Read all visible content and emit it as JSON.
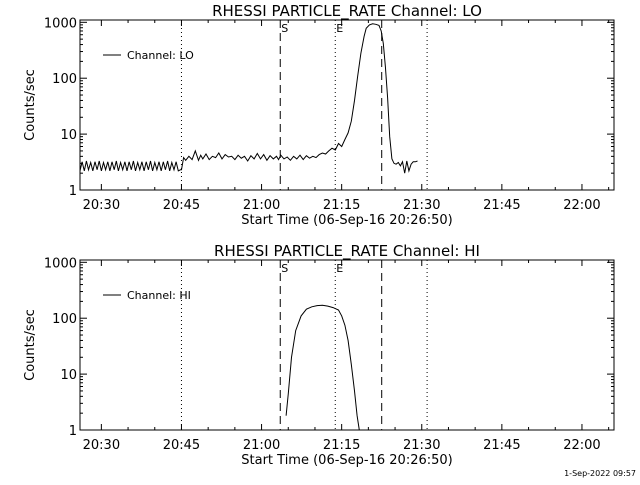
{
  "footer": {
    "date": "1-Sep-2022 09:57"
  },
  "chart_data": [
    {
      "type": "line",
      "title": "RHESSI PARTICLE_RATE Channel: LO",
      "xlabel": "Start Time (06-Sep-16 20:26:50)",
      "ylabel": "Counts/sec",
      "yscale": "log",
      "ylim": [
        1,
        1100
      ],
      "xlim_min": [
        -4,
        96
      ],
      "xticks_min": [
        0,
        15,
        30,
        45,
        60,
        75,
        90
      ],
      "xtick_labels": [
        "20:30",
        "20:45",
        "21:00",
        "21:15",
        "21:30",
        "21:45",
        "22:00"
      ],
      "yticks": [
        1,
        10,
        100,
        1000
      ],
      "ytick_labels": [
        "1",
        "10",
        "100",
        "1000"
      ],
      "legend": {
        "label": "Channel: LO",
        "position": "top-left"
      },
      "markers": [
        {
          "label": "S",
          "x_min": 33.5,
          "style": "dashed"
        },
        {
          "label": "E",
          "x_min": 43.8,
          "style": "dotted"
        }
      ],
      "vlines": [
        {
          "x_min": 15.0,
          "style": "dotted"
        },
        {
          "x_min": 52.5,
          "style": "dashed"
        },
        {
          "x_min": 61.0,
          "style": "dotted"
        }
      ],
      "series": [
        {
          "name": "Channel: LO",
          "x_min": [
            -4.0,
            -3.6,
            -3.2,
            -2.8,
            -2.4,
            -2.0,
            -1.6,
            -1.2,
            -0.8,
            -0.4,
            0.0,
            0.4,
            0.8,
            1.2,
            1.6,
            2.0,
            2.4,
            2.8,
            3.2,
            3.6,
            4.0,
            4.4,
            4.8,
            5.2,
            5.6,
            6.0,
            6.4,
            6.8,
            7.2,
            7.6,
            8.0,
            8.4,
            8.8,
            9.2,
            9.6,
            10.0,
            10.4,
            10.8,
            11.2,
            11.6,
            12.0,
            12.4,
            12.8,
            13.2,
            13.6,
            14.0,
            14.4,
            14.8,
            15.0,
            15.4,
            15.8,
            16.4,
            17.0,
            17.6,
            18.2,
            18.6,
            19.0,
            19.6,
            20.2,
            20.8,
            21.4,
            22.0,
            22.6,
            23.2,
            23.8,
            24.4,
            25.0,
            25.6,
            26.2,
            26.8,
            27.4,
            28.0,
            28.6,
            29.2,
            29.8,
            30.4,
            31.0,
            31.6,
            32.2,
            32.8,
            33.2,
            33.6,
            34.2,
            34.8,
            35.4,
            36.0,
            36.6,
            37.2,
            37.8,
            38.4,
            39.0,
            39.6,
            40.2,
            40.8,
            41.4,
            42.0,
            42.6,
            43.2,
            43.8,
            44.4,
            45.0,
            45.6,
            46.2,
            46.8,
            47.4,
            48.0,
            48.6,
            49.2,
            49.6,
            50.2,
            50.8,
            51.4,
            52.0,
            52.4,
            52.8,
            53.2,
            53.6,
            54.0,
            54.4,
            54.8,
            55.2,
            55.6,
            56.0,
            56.4,
            56.8,
            57.2,
            57.6,
            58.0,
            58.4,
            58.8,
            59.2
          ],
          "y": [
            2.2,
            3.2,
            2.2,
            3.3,
            2.3,
            3.1,
            2.2,
            3.2,
            2.3,
            3.3,
            2.2,
            3.1,
            2.3,
            3.2,
            2.2,
            3.2,
            2.3,
            3.3,
            2.2,
            3.1,
            2.3,
            3.2,
            2.2,
            3.2,
            2.3,
            3.3,
            2.2,
            3.1,
            2.3,
            3.2,
            2.2,
            3.2,
            2.3,
            3.3,
            2.2,
            3.1,
            2.3,
            3.2,
            2.2,
            3.2,
            2.3,
            3.3,
            2.2,
            3.1,
            2.3,
            3.2,
            2.2,
            2.3,
            2.3,
            3.8,
            3.4,
            4.0,
            3.5,
            5.0,
            3.4,
            4.2,
            3.6,
            4.4,
            3.5,
            4.0,
            3.8,
            4.6,
            3.6,
            4.3,
            3.9,
            4.0,
            3.5,
            4.2,
            3.7,
            4.0,
            3.3,
            4.1,
            3.6,
            4.5,
            3.6,
            4.3,
            3.4,
            4.1,
            3.6,
            4.0,
            3.5,
            4.2,
            3.6,
            3.9,
            3.4,
            4.0,
            3.6,
            4.2,
            3.5,
            4.1,
            3.7,
            4.0,
            3.8,
            4.3,
            4.6,
            4.4,
            5.0,
            5.6,
            5.2,
            6.8,
            6.0,
            8.0,
            10.5,
            17.0,
            40.0,
            110.0,
            280.0,
            560.0,
            780.0,
            900.0,
            940.0,
            920.0,
            880.0,
            700.0,
            420.0,
            160.0,
            45.0,
            9.0,
            3.6,
            3.0,
            2.9,
            3.1,
            2.7,
            3.2,
            2.0,
            3.3,
            2.2,
            2.9,
            3.2,
            3.2,
            3.3
          ],
          "color": "#000000"
        }
      ]
    },
    {
      "type": "line",
      "title": "RHESSI PARTICLE_RATE Channel: HI",
      "xlabel": "Start Time (06-Sep-16 20:26:50)",
      "ylabel": "Counts/sec",
      "yscale": "log",
      "ylim": [
        1,
        1100
      ],
      "xlim_min": [
        -4,
        96
      ],
      "xticks_min": [
        0,
        15,
        30,
        45,
        60,
        75,
        90
      ],
      "xtick_labels": [
        "20:30",
        "20:45",
        "21:00",
        "21:15",
        "21:30",
        "21:45",
        "22:00"
      ],
      "yticks": [
        1,
        10,
        100,
        1000
      ],
      "ytick_labels": [
        "1",
        "10",
        "100",
        "1000"
      ],
      "legend": {
        "label": "Channel: HI",
        "position": "top-left"
      },
      "markers": [
        {
          "label": "S",
          "x_min": 33.5,
          "style": "dashed"
        },
        {
          "label": "E",
          "x_min": 43.8,
          "style": "dotted"
        }
      ],
      "vlines": [
        {
          "x_min": 15.0,
          "style": "dotted"
        },
        {
          "x_min": 52.5,
          "style": "dashed"
        },
        {
          "x_min": 61.0,
          "style": "dotted"
        }
      ],
      "series": [
        {
          "name": "Channel: HI",
          "x_min": [
            34.6,
            35.0,
            35.6,
            36.4,
            37.4,
            38.4,
            39.4,
            40.4,
            41.4,
            42.4,
            43.4,
            44.4,
            45.0,
            45.6,
            46.2,
            46.8,
            47.4,
            47.9,
            48.3
          ],
          "y": [
            1.8,
            4.5,
            20.0,
            60.0,
            110.0,
            145.0,
            160.0,
            168.0,
            170.0,
            165.0,
            155.0,
            140.0,
            110.0,
            75.0,
            40.0,
            15.0,
            5.0,
            1.8,
            1.0
          ],
          "color": "#000000"
        }
      ]
    }
  ]
}
